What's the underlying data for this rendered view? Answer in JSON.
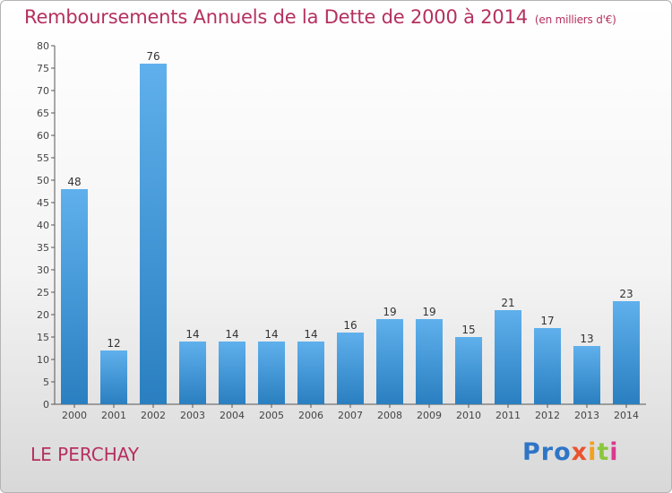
{
  "title": "Remboursements Annuels de la Dette de 2000 à 2014",
  "unit": "(en milliers d'€)",
  "location": "LE PERCHAY",
  "logo": {
    "letters": [
      "Pro",
      "x",
      "i",
      "t",
      "i"
    ]
  },
  "colors": {
    "bar_light": "#5fb0ec",
    "bar_dark": "#2a7fc0",
    "title": "#b5305f"
  },
  "chart_data": {
    "type": "bar",
    "title": "Remboursements Annuels de la Dette de 2000 à 2014",
    "categories": [
      "2000",
      "2001",
      "2002",
      "2003",
      "2004",
      "2005",
      "2006",
      "2007",
      "2008",
      "2009",
      "2010",
      "2011",
      "2012",
      "2013",
      "2014"
    ],
    "values": [
      48,
      12,
      76,
      14,
      14,
      14,
      14,
      16,
      19,
      19,
      15,
      21,
      17,
      13,
      23
    ],
    "ylim": [
      0,
      80
    ],
    "yticks": [
      0,
      5,
      10,
      15,
      20,
      25,
      30,
      35,
      40,
      45,
      50,
      55,
      60,
      65,
      70,
      75,
      80
    ],
    "grid": false,
    "legend": "none"
  }
}
